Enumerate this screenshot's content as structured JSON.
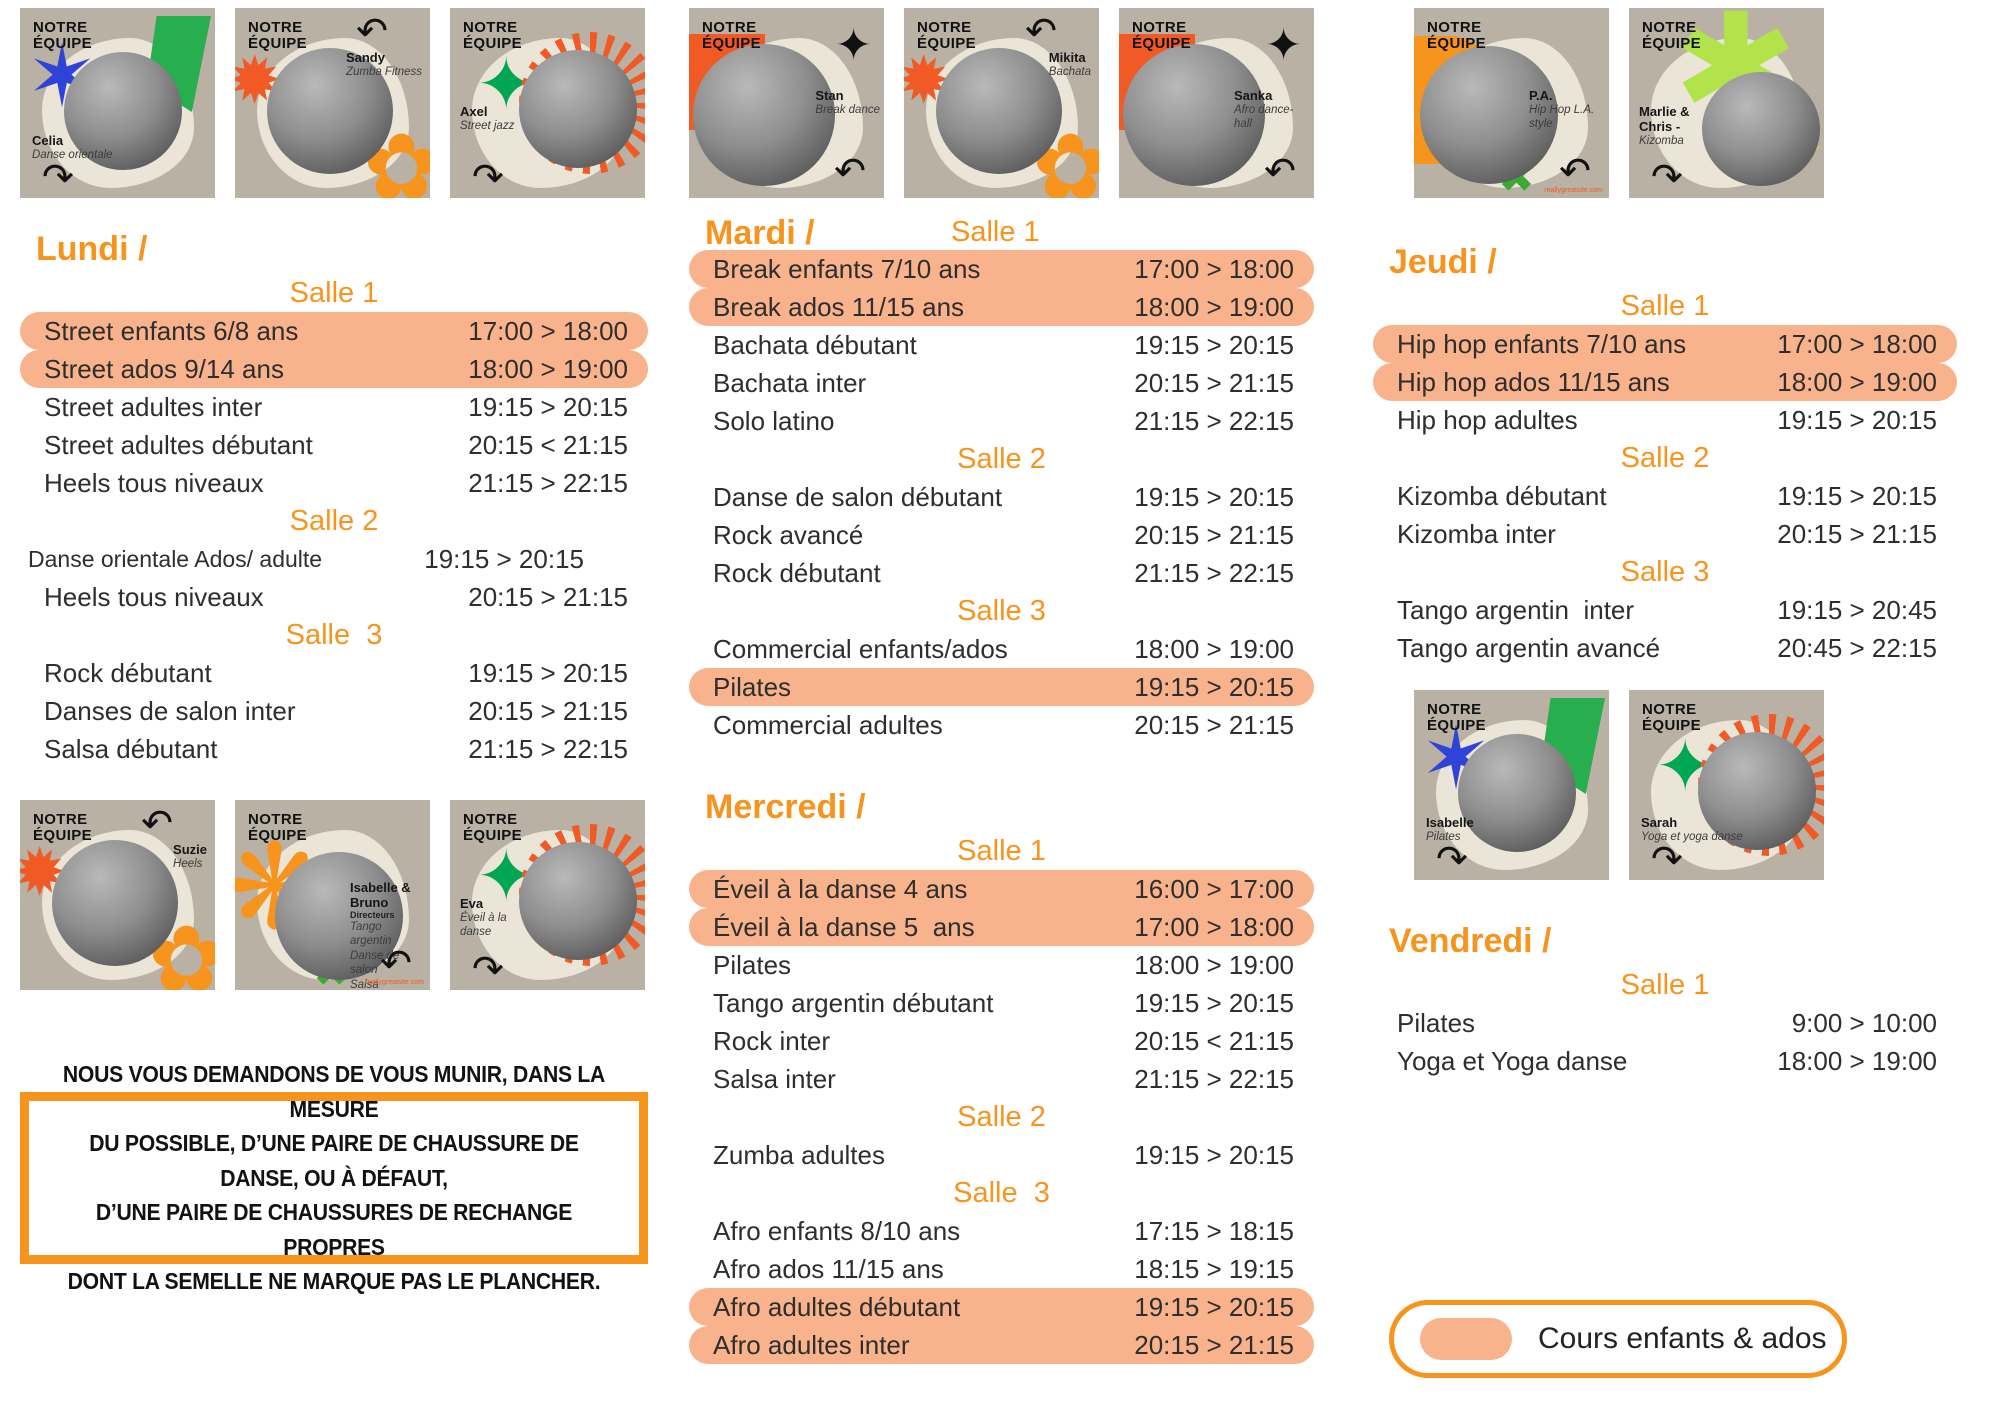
{
  "colors": {
    "accent_orange": "#F7941E",
    "deep_orange": "#F15A24",
    "highlight_pill": "#F8B38C",
    "green": "#27AE4E",
    "lime": "#B2E34B",
    "blue": "#2F43D8",
    "yellow": "#F4C63F",
    "text": "#2E2E2E"
  },
  "team_brand_lines": [
    "NOTRE",
    "ÉQUIPE"
  ],
  "legend": {
    "label": "Cours enfants & ados"
  },
  "notice": {
    "lines": [
      "NOUS VOUS DEMANDONS DE VOUS MUNIR, DANS LA MESURE",
      "DU POSSIBLE, D’UNE PAIRE DE CHAUSSURE DE DANSE, OU À DÉFAUT,",
      "D’UNE PAIRE DE CHAUSSURES DE RECHANGE PROPRES",
      "DONT LA SEMELLE NE MARQUE PAS LE PLANCHER."
    ]
  },
  "team_groups": [
    {
      "cards": [
        {
          "name": "Celia",
          "roles": [
            "Danse orientale"
          ],
          "variant": "blue-star",
          "label_pos": "bl"
        },
        {
          "name": "Sandy",
          "roles": [
            "Zumba Fitness"
          ],
          "variant": "orange-star-flower",
          "label_pos": "tr"
        },
        {
          "name": "Axel",
          "roles": [
            "Street jazz"
          ],
          "variant": "sunburst",
          "label_pos": "ml"
        }
      ]
    },
    {
      "cards": [
        {
          "name": "Stan",
          "roles": [
            "Break dance"
          ],
          "variant": "orange-block",
          "label_pos": "mr"
        },
        {
          "name": "Mikita",
          "roles": [
            "Bachata"
          ],
          "variant": "orange-star-flower",
          "label_pos": "tr"
        },
        {
          "name": "Sanka",
          "roles": [
            "Afro dance-hall"
          ],
          "variant": "orange-block",
          "label_pos": "mr"
        }
      ]
    },
    {
      "cards": [
        {
          "name": "P.A.",
          "roles": [
            "Hip Hop L.A. style"
          ],
          "variant": "orange-blob-x",
          "label_pos": "mr",
          "site": "reallygreatsite.com"
        },
        {
          "name": "Marlie & Chris -",
          "roles": [
            "Kizomba"
          ],
          "variant": "lime-asterisk",
          "label_pos": "ml"
        }
      ]
    },
    {
      "cards": [
        {
          "name": "Isabelle",
          "roles": [
            "Pilates"
          ],
          "variant": "blue-star",
          "label_pos": "bl"
        },
        {
          "name": "Sarah",
          "roles": [
            "Yoga et yoga danse"
          ],
          "variant": "sunburst",
          "label_pos": "bl"
        }
      ]
    },
    {
      "cards": [
        {
          "name": "Suzie",
          "roles": [
            "Heels"
          ],
          "variant": "orange-star-flower",
          "label_pos": "tr"
        },
        {
          "name": "Isabelle & Bruno",
          "sub": "Directeurs",
          "roles": [
            "Tango argentin",
            "Danse de salon",
            "Salsa",
            "Rock"
          ],
          "variant": "orange-aster-x",
          "label_pos": "mr",
          "site": "reallygreatsite.com"
        },
        {
          "name": "Eva",
          "roles": [
            "Éveil à la danse"
          ],
          "variant": "sunburst",
          "label_pos": "ml"
        }
      ]
    }
  ],
  "days": [
    {
      "title": "Lundi /",
      "inline_salle": null,
      "items": [
        {
          "type": "salle",
          "label": "Salle 1"
        },
        {
          "type": "row",
          "name": "Street enfants 6/8 ans",
          "time": "17:00 > 18:00",
          "highlight": true
        },
        {
          "type": "row",
          "name": "Street ados 9/14 ans",
          "time": "18:00 > 19:00",
          "highlight": true
        },
        {
          "type": "row",
          "name": "Street adultes inter",
          "time": "19:15 > 20:15"
        },
        {
          "type": "row",
          "name": "Street adultes débutant",
          "time": "20:15 < 21:15"
        },
        {
          "type": "row",
          "name": "Heels tous niveaux",
          "time": "21:15 > 22:15"
        },
        {
          "type": "salle",
          "label": "Salle 2"
        },
        {
          "type": "row",
          "name": "Danse orientale Ados/ adulte",
          "time": "19:15 > 20:15",
          "small": true
        },
        {
          "type": "row",
          "name": "Heels tous niveaux",
          "time": "20:15 > 21:15"
        },
        {
          "type": "salle",
          "label": "Salle  3"
        },
        {
          "type": "row",
          "name": "Rock débutant",
          "time": "19:15 > 20:15"
        },
        {
          "type": "row",
          "name": "Danses de salon inter",
          "time": "20:15 > 21:15"
        },
        {
          "type": "row",
          "name": "Salsa débutant",
          "time": "21:15 > 22:15"
        }
      ]
    },
    {
      "title": "Mardi /",
      "inline_salle": "Salle 1",
      "items": [
        {
          "type": "row",
          "name": "Break enfants 7/10 ans",
          "time": "17:00 > 18:00",
          "highlight": true
        },
        {
          "type": "row",
          "name": "Break ados 11/15 ans",
          "time": "18:00 > 19:00",
          "highlight": true
        },
        {
          "type": "row",
          "name": "Bachata débutant",
          "time": "19:15 > 20:15"
        },
        {
          "type": "row",
          "name": "Bachata inter",
          "time": "20:15 > 21:15"
        },
        {
          "type": "row",
          "name": "Solo latino",
          "time": "21:15 > 22:15"
        },
        {
          "type": "salle",
          "label": "Salle 2"
        },
        {
          "type": "row",
          "name": "Danse de salon débutant",
          "time": "19:15 > 20:15"
        },
        {
          "type": "row",
          "name": "Rock avancé",
          "time": "20:15 > 21:15"
        },
        {
          "type": "row",
          "name": "Rock débutant",
          "time": "21:15 > 22:15"
        },
        {
          "type": "salle",
          "label": "Salle 3"
        },
        {
          "type": "row",
          "name": "Commercial enfants/ados",
          "time": "18:00 > 19:00"
        },
        {
          "type": "row",
          "name": "Pilates",
          "time": "19:15 > 20:15",
          "highlight": true
        },
        {
          "type": "row",
          "name": "Commercial adultes",
          "time": "20:15 > 21:15"
        }
      ]
    },
    {
      "title": "Mercredi /",
      "inline_salle": null,
      "items": [
        {
          "type": "salle",
          "label": "Salle 1"
        },
        {
          "type": "row",
          "name": "Éveil à la danse 4 ans",
          "time": "16:00 > 17:00",
          "highlight": true
        },
        {
          "type": "row",
          "name": "Éveil à la danse 5  ans",
          "time": "17:00 > 18:00",
          "highlight": true
        },
        {
          "type": "row",
          "name": "Pilates",
          "time": "18:00 > 19:00"
        },
        {
          "type": "row",
          "name": "Tango argentin débutant",
          "time": "19:15 > 20:15"
        },
        {
          "type": "row",
          "name": "Rock inter",
          "time": "20:15 < 21:15"
        },
        {
          "type": "row",
          "name": "Salsa inter",
          "time": "21:15 > 22:15"
        },
        {
          "type": "salle",
          "label": "Salle 2"
        },
        {
          "type": "row",
          "name": "Zumba adultes",
          "time": "19:15 > 20:15"
        },
        {
          "type": "salle",
          "label": "Salle  3"
        },
        {
          "type": "row",
          "name": "Afro enfants 8/10 ans",
          "time": "17:15 > 18:15"
        },
        {
          "type": "row",
          "name": "Afro ados 11/15 ans",
          "time": "18:15 > 19:15"
        },
        {
          "type": "row",
          "name": "Afro adultes débutant",
          "time": "19:15 > 20:15",
          "highlight": true
        },
        {
          "type": "row",
          "name": "Afro adultes inter",
          "time": "20:15 > 21:15",
          "highlight": true
        }
      ]
    },
    {
      "title": "Jeudi /",
      "inline_salle": null,
      "items": [
        {
          "type": "salle",
          "label": "Salle 1"
        },
        {
          "type": "row",
          "name": "Hip hop enfants 7/10 ans",
          "time": "17:00 > 18:00",
          "highlight": true
        },
        {
          "type": "row",
          "name": "Hip hop ados 11/15 ans",
          "time": "18:00 > 19:00",
          "highlight": true
        },
        {
          "type": "row",
          "name": "Hip hop adultes",
          "time": "19:15 > 20:15"
        },
        {
          "type": "salle",
          "label": "Salle 2"
        },
        {
          "type": "row",
          "name": "Kizomba débutant",
          "time": "19:15 > 20:15"
        },
        {
          "type": "row",
          "name": "Kizomba inter",
          "time": "20:15 > 21:15"
        },
        {
          "type": "salle",
          "label": "Salle 3"
        },
        {
          "type": "row",
          "name": "Tango argentin  inter",
          "time": "19:15 > 20:45"
        },
        {
          "type": "row",
          "name": "Tango argentin avancé",
          "time": "20:45 > 22:15"
        }
      ]
    },
    {
      "title": "Vendredi /",
      "inline_salle": null,
      "items": [
        {
          "type": "salle",
          "label": "Salle 1"
        },
        {
          "type": "row",
          "name": "Pilates",
          "time": "9:00 > 10:00"
        },
        {
          "type": "row",
          "name": "Yoga et Yoga danse",
          "time": "18:00 > 19:00"
        }
      ]
    }
  ]
}
